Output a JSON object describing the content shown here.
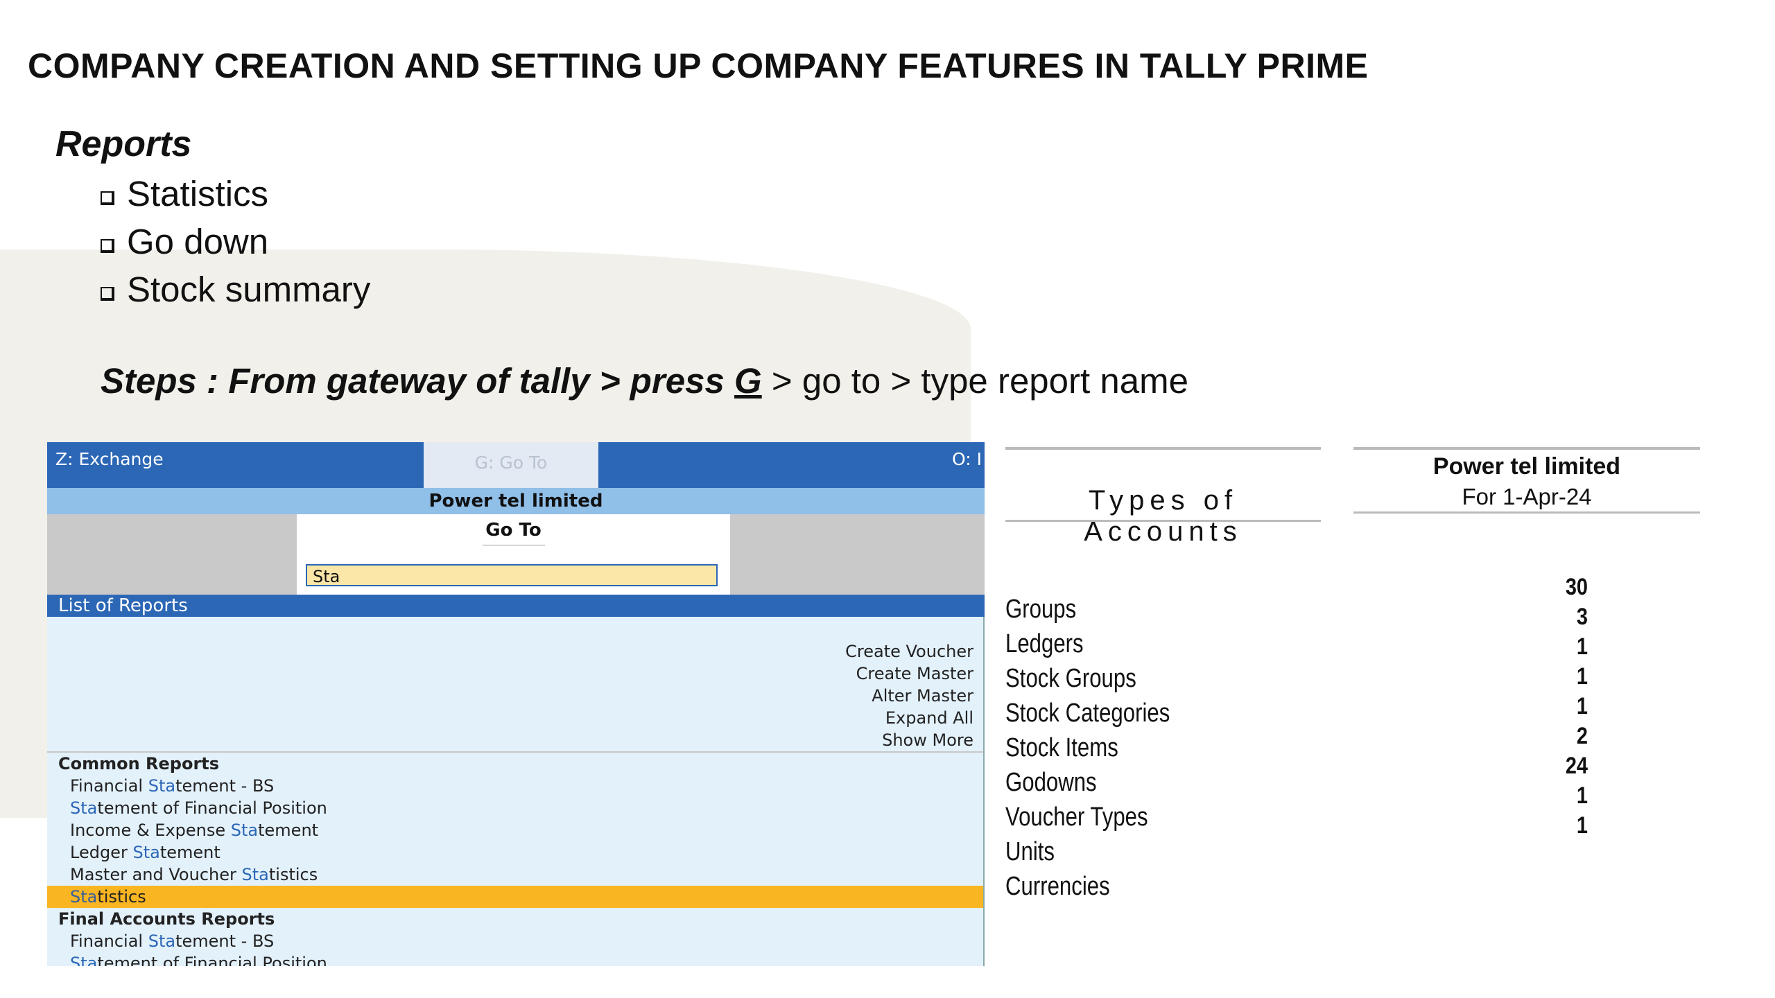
{
  "page": {
    "title": "COMPANY CREATION AND SETTING UP COMPANY FEATURES IN TALLY PRIME",
    "reports_heading": "Reports",
    "bullets": [
      "Statistics",
      "Go down",
      "Stock summary"
    ],
    "steps": {
      "prefix": "Steps : From gateway of tally > press ",
      "key": "G",
      "suffix": " > go to > type report name"
    }
  },
  "tally": {
    "top_left": "Z: Exchange",
    "top_center": "G: Go To",
    "top_right": "O: I",
    "company": "Power tel limited",
    "dialog_title": "Go To",
    "input_value": "Sta",
    "list_header": "List of Reports",
    "actions": [
      "Create Voucher",
      "Create Master",
      "Alter Master",
      "Expand All",
      "Show More"
    ],
    "common_header": "Common Reports",
    "common_items": [
      {
        "pre": "Financial ",
        "hl": "Sta",
        "post": "tement - BS"
      },
      {
        "pre": "",
        "hl": "Sta",
        "post": "tement of Financial Position"
      },
      {
        "pre": "Income & Expense ",
        "hl": "Sta",
        "post": "tement"
      },
      {
        "pre": "Ledger ",
        "hl": "Sta",
        "post": "tement"
      },
      {
        "pre": "Master and Voucher ",
        "hl": "Sta",
        "post": "tistics"
      }
    ],
    "selected_item": {
      "pre": "",
      "hl": "Sta",
      "post": "tistics"
    },
    "final_header": "Final Accounts Reports",
    "final_items": [
      {
        "pre": "Financial ",
        "hl": "Sta",
        "post": "tement - BS"
      },
      {
        "pre": "",
        "hl": "Sta",
        "post": "tement of Financial Position"
      }
    ]
  },
  "accounts": {
    "title": "Types of Accounts",
    "company": "Power tel limited",
    "date": "For 1-Apr-24",
    "labels": [
      "Groups",
      "Ledgers",
      "Stock Groups",
      "Stock Categories",
      "Stock Items",
      "Godowns",
      "Voucher Types",
      "Units",
      "Currencies"
    ],
    "values": [
      "30",
      "3",
      "1",
      "1",
      "1",
      "2",
      "24",
      "1",
      "1"
    ]
  }
}
